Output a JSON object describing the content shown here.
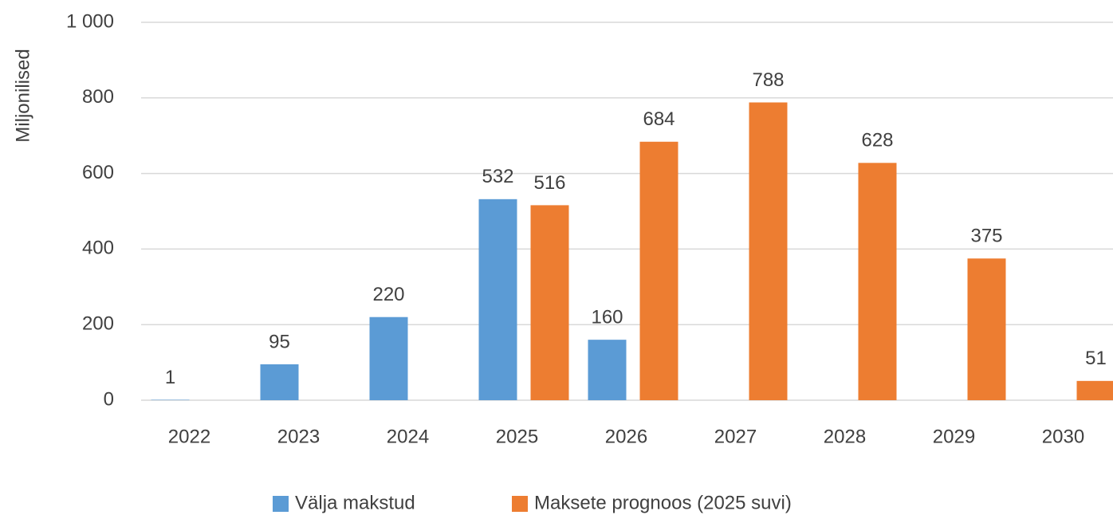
{
  "chart_data": {
    "type": "bar",
    "y_label": "Miljonilised",
    "categories": [
      "2022",
      "2023",
      "2024",
      "2025",
      "2026",
      "2027",
      "2028",
      "2029",
      "2030"
    ],
    "series": [
      {
        "name": "Välja makstud",
        "color": "#5b9bd5",
        "values": [
          1,
          95,
          220,
          532,
          160,
          null,
          null,
          null,
          null
        ]
      },
      {
        "name": "Maksete prognoos (2025 suvi)",
        "color": "#ed7d31",
        "values": [
          null,
          null,
          null,
          516,
          684,
          788,
          628,
          375,
          51
        ]
      }
    ],
    "ylim": [
      0,
      1000
    ],
    "yticks": [
      0,
      200,
      400,
      600,
      800,
      {
        "value": 1000,
        "label": "1 000"
      }
    ],
    "grid": true,
    "legend": "bottom"
  }
}
